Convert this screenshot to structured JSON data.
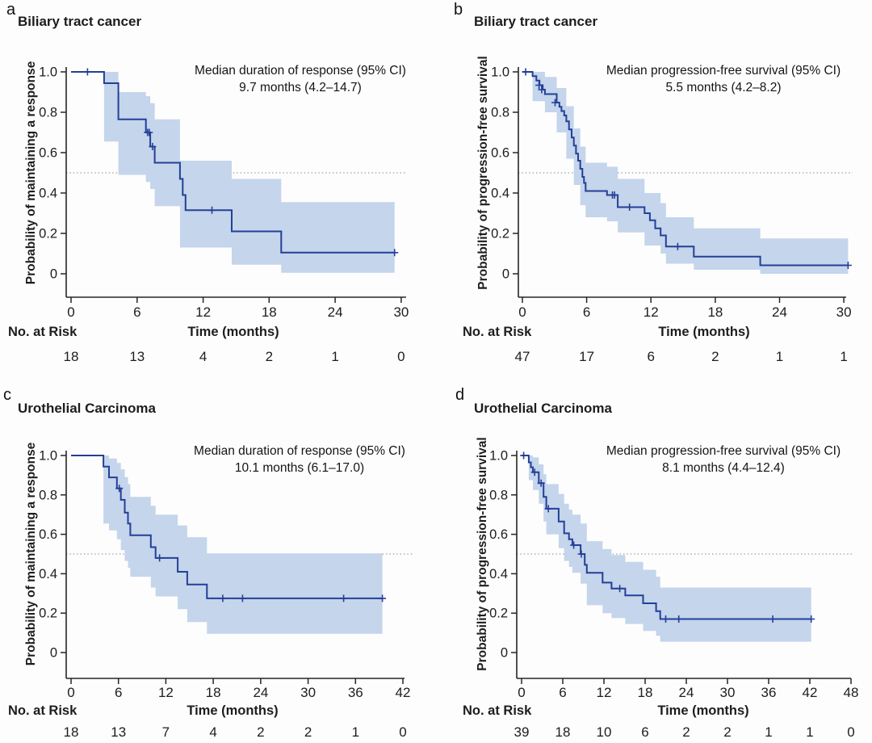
{
  "colors": {
    "curve": "#243f97",
    "ci_band": "#c4d5ec",
    "reference_line": "#9a9a9a",
    "axis": "#262626"
  },
  "chart_data": [
    {
      "id": "a",
      "type": "km_step",
      "panel_label": "a",
      "title": "Biliary tract cancer",
      "y_axis_label": "Probability of maintaining a response",
      "x_axis_label": "Time (months)",
      "risk_label": "No. at Risk",
      "annotation": {
        "line1": "Median duration of response (95% CI)",
        "line2": "9.7 months (4.2–14.7)"
      },
      "x_ticks": [
        0,
        6,
        12,
        18,
        24,
        30
      ],
      "y_tick_values": [
        1.0,
        0.8,
        0.6,
        0.4,
        0.2,
        0
      ],
      "y_tick_labels": [
        "1.0",
        "0.8",
        "0.6",
        "0.4",
        "0.2",
        "0"
      ],
      "y_range": [
        0,
        1
      ],
      "x_max": 30.5,
      "reference_line": 0.5,
      "no_at_risk": [
        18,
        13,
        4,
        2,
        1,
        0
      ],
      "steps": [
        [
          0,
          1.0
        ],
        [
          3.0,
          0.944
        ],
        [
          4.3,
          0.765
        ],
        [
          6.8,
          0.7
        ],
        [
          7.2,
          0.63
        ],
        [
          7.6,
          0.55
        ],
        [
          9.9,
          0.47
        ],
        [
          10.15,
          0.39
        ],
        [
          10.4,
          0.315
        ],
        [
          14.6,
          0.21
        ],
        [
          19.1,
          0.105
        ],
        [
          29.4,
          0.105
        ]
      ],
      "censors": [
        [
          1.5,
          1.0
        ],
        [
          6.95,
          0.7
        ],
        [
          7.1,
          0.7
        ],
        [
          7.4,
          0.63
        ],
        [
          12.8,
          0.315
        ],
        [
          29.4,
          0.105
        ]
      ],
      "ci_segments": [
        [
          3.0,
          4.3,
          0.655,
          1.0
        ],
        [
          4.3,
          6.8,
          0.49,
          0.9
        ],
        [
          6.8,
          7.2,
          0.455,
          0.88
        ],
        [
          7.2,
          7.6,
          0.42,
          0.845
        ],
        [
          7.6,
          9.9,
          0.335,
          0.765
        ],
        [
          9.9,
          14.6,
          0.13,
          0.56
        ],
        [
          14.6,
          19.1,
          0.045,
          0.47
        ],
        [
          19.1,
          29.4,
          0.005,
          0.355
        ]
      ]
    },
    {
      "id": "b",
      "type": "km_step",
      "panel_label": "b",
      "title": "Biliary tract cancer",
      "y_axis_label": "Probability of progression-free survival",
      "x_axis_label": "Time (months)",
      "risk_label": "No. at Risk",
      "annotation": {
        "line1": "Median progression-free survival (95% CI)",
        "line2": "5.5 months (4.2–8.2)"
      },
      "x_ticks": [
        0,
        6,
        12,
        18,
        24,
        30
      ],
      "y_tick_values": [
        1.0,
        0.8,
        0.6,
        0.4,
        0.2,
        0
      ],
      "y_tick_labels": [
        "1.0",
        "0.8",
        "0.6",
        "0.4",
        "0.2",
        "0"
      ],
      "y_range": [
        0,
        1
      ],
      "x_max": 30.5,
      "reference_line": 0.5,
      "no_at_risk": [
        47,
        17,
        6,
        2,
        1,
        1
      ],
      "steps": [
        [
          0,
          1.0
        ],
        [
          0.95,
          0.979
        ],
        [
          1.3,
          0.957
        ],
        [
          1.6,
          0.934
        ],
        [
          1.9,
          0.912
        ],
        [
          2.1,
          0.89
        ],
        [
          3.2,
          0.848
        ],
        [
          3.45,
          0.827
        ],
        [
          3.65,
          0.806
        ],
        [
          3.9,
          0.784
        ],
        [
          4.1,
          0.755
        ],
        [
          4.35,
          0.715
        ],
        [
          4.6,
          0.675
        ],
        [
          4.8,
          0.635
        ],
        [
          5.0,
          0.595
        ],
        [
          5.2,
          0.56
        ],
        [
          5.4,
          0.52
        ],
        [
          5.6,
          0.48
        ],
        [
          5.75,
          0.45
        ],
        [
          5.9,
          0.41
        ],
        [
          7.9,
          0.39
        ],
        [
          8.9,
          0.33
        ],
        [
          11.4,
          0.3
        ],
        [
          11.9,
          0.265
        ],
        [
          12.4,
          0.225
        ],
        [
          12.9,
          0.19
        ],
        [
          13.4,
          0.135
        ],
        [
          16.0,
          0.085
        ],
        [
          22.2,
          0.042
        ],
        [
          30.4,
          0.042
        ]
      ],
      "censors": [
        [
          0.3,
          1.0
        ],
        [
          1.55,
          0.934
        ],
        [
          1.8,
          0.912
        ],
        [
          3.05,
          0.848
        ],
        [
          8.4,
          0.39
        ],
        [
          8.6,
          0.39
        ],
        [
          10.0,
          0.33
        ],
        [
          14.5,
          0.135
        ],
        [
          30.4,
          0.042
        ]
      ],
      "ci_segments": [
        [
          0.95,
          2.1,
          0.855,
          1.0
        ],
        [
          2.1,
          3.2,
          0.8,
          0.975
        ],
        [
          3.2,
          4.1,
          0.7,
          0.92
        ],
        [
          4.1,
          4.8,
          0.57,
          0.83
        ],
        [
          4.8,
          5.4,
          0.44,
          0.72
        ],
        [
          5.4,
          5.9,
          0.34,
          0.63
        ],
        [
          5.9,
          7.9,
          0.28,
          0.55
        ],
        [
          7.9,
          8.9,
          0.26,
          0.53
        ],
        [
          8.9,
          11.4,
          0.205,
          0.47
        ],
        [
          11.4,
          12.9,
          0.14,
          0.4
        ],
        [
          12.9,
          13.4,
          0.1,
          0.35
        ],
        [
          13.4,
          16.0,
          0.05,
          0.28
        ],
        [
          16.0,
          22.2,
          0.02,
          0.225
        ],
        [
          22.2,
          30.4,
          0.0,
          0.175
        ]
      ]
    },
    {
      "id": "c",
      "type": "km_step",
      "panel_label": "c",
      "title": "Urothelial Carcinoma",
      "y_axis_label": "Probability of maintaining a response",
      "x_axis_label": "Time (months)",
      "risk_label": "No. at Risk",
      "annotation": {
        "line1": "Median duration of response (95% CI)",
        "line2": "10.1 months (6.1–17.0)"
      },
      "x_ticks": [
        0,
        6,
        12,
        18,
        24,
        30,
        36,
        42
      ],
      "y_tick_values": [
        1.0,
        0.8,
        0.6,
        0.4,
        0.2,
        0
      ],
      "y_tick_labels": [
        "1.0",
        "0.8",
        "0.6",
        "0.4",
        "0.2",
        "0"
      ],
      "y_range": [
        0,
        1
      ],
      "x_max": 42.5,
      "reference_line": 0.5,
      "no_at_risk": [
        18,
        13,
        7,
        4,
        2,
        2,
        1,
        0
      ],
      "steps": [
        [
          0,
          1.0
        ],
        [
          4.1,
          0.944
        ],
        [
          4.8,
          0.889
        ],
        [
          5.8,
          0.833
        ],
        [
          6.3,
          0.775
        ],
        [
          6.8,
          0.71
        ],
        [
          7.2,
          0.655
        ],
        [
          7.5,
          0.595
        ],
        [
          10.1,
          0.535
        ],
        [
          10.7,
          0.48
        ],
        [
          13.5,
          0.41
        ],
        [
          14.7,
          0.345
        ],
        [
          17.2,
          0.275
        ],
        [
          39.4,
          0.275
        ]
      ],
      "censors": [
        [
          6.1,
          0.833
        ],
        [
          11.2,
          0.48
        ],
        [
          19.2,
          0.275
        ],
        [
          21.7,
          0.275
        ],
        [
          34.5,
          0.275
        ],
        [
          39.4,
          0.275
        ]
      ],
      "ci_segments": [
        [
          4.1,
          4.8,
          0.655,
          1.0
        ],
        [
          4.8,
          5.8,
          0.62,
          0.985
        ],
        [
          5.8,
          6.3,
          0.575,
          0.962
        ],
        [
          6.3,
          6.8,
          0.52,
          0.93
        ],
        [
          6.8,
          7.2,
          0.465,
          0.89
        ],
        [
          7.2,
          7.5,
          0.43,
          0.855
        ],
        [
          7.5,
          10.1,
          0.385,
          0.79
        ],
        [
          10.1,
          10.7,
          0.33,
          0.745
        ],
        [
          10.7,
          13.5,
          0.285,
          0.7
        ],
        [
          13.5,
          14.7,
          0.22,
          0.645
        ],
        [
          14.7,
          17.2,
          0.155,
          0.585
        ],
        [
          17.2,
          39.4,
          0.095,
          0.503
        ]
      ]
    },
    {
      "id": "d",
      "type": "km_step",
      "panel_label": "d",
      "title": "Urothelial Carcinoma",
      "y_axis_label": "Probability of progression-free survival",
      "x_axis_label": "Time (months)",
      "risk_label": "No. at Risk",
      "annotation": {
        "line1": "Median progression-free survival (95% CI)",
        "line2": "8.1 months (4.4–12.4)"
      },
      "x_ticks": [
        0,
        6,
        12,
        18,
        24,
        30,
        36,
        42,
        48
      ],
      "y_tick_values": [
        1.0,
        0.8,
        0.6,
        0.4,
        0.2,
        0
      ],
      "y_tick_labels": [
        "1.0",
        "0.8",
        "0.6",
        "0.4",
        "0.2",
        "0"
      ],
      "y_range": [
        0,
        1
      ],
      "x_max": 48.5,
      "reference_line": 0.5,
      "no_at_risk": [
        39,
        18,
        10,
        6,
        2,
        2,
        1,
        1,
        0
      ],
      "steps": [
        [
          0,
          1.0
        ],
        [
          1.05,
          0.965
        ],
        [
          1.35,
          0.94
        ],
        [
          1.65,
          0.915
        ],
        [
          2.5,
          0.86
        ],
        [
          3.2,
          0.79
        ],
        [
          3.6,
          0.73
        ],
        [
          5.4,
          0.665
        ],
        [
          6.2,
          0.605
        ],
        [
          6.9,
          0.575
        ],
        [
          7.4,
          0.545
        ],
        [
          8.6,
          0.5
        ],
        [
          9.2,
          0.445
        ],
        [
          9.5,
          0.405
        ],
        [
          11.8,
          0.355
        ],
        [
          13.1,
          0.325
        ],
        [
          15.1,
          0.29
        ],
        [
          17.7,
          0.25
        ],
        [
          19.6,
          0.21
        ],
        [
          20.2,
          0.17
        ],
        [
          42.2,
          0.17
        ]
      ],
      "censors": [
        [
          0.3,
          1.0
        ],
        [
          1.9,
          0.915
        ],
        [
          2.85,
          0.86
        ],
        [
          3.9,
          0.73
        ],
        [
          7.6,
          0.545
        ],
        [
          8.7,
          0.5
        ],
        [
          14.3,
          0.325
        ],
        [
          21.0,
          0.17
        ],
        [
          22.9,
          0.17
        ],
        [
          36.6,
          0.17
        ],
        [
          42.2,
          0.17
        ]
      ],
      "ci_segments": [
        [
          1.05,
          1.65,
          0.875,
          1.0
        ],
        [
          1.65,
          2.5,
          0.825,
          0.99
        ],
        [
          2.5,
          3.2,
          0.755,
          0.955
        ],
        [
          3.2,
          3.6,
          0.665,
          0.905
        ],
        [
          3.6,
          5.4,
          0.6,
          0.855
        ],
        [
          5.4,
          6.2,
          0.53,
          0.805
        ],
        [
          6.2,
          6.9,
          0.465,
          0.755
        ],
        [
          6.9,
          7.4,
          0.435,
          0.725
        ],
        [
          7.4,
          8.6,
          0.405,
          0.7
        ],
        [
          8.6,
          9.5,
          0.35,
          0.655
        ],
        [
          9.5,
          11.8,
          0.24,
          0.565
        ],
        [
          11.8,
          13.1,
          0.2,
          0.525
        ],
        [
          13.1,
          15.1,
          0.175,
          0.495
        ],
        [
          15.1,
          17.7,
          0.145,
          0.46
        ],
        [
          17.7,
          19.6,
          0.11,
          0.42
        ],
        [
          19.6,
          20.2,
          0.085,
          0.385
        ],
        [
          20.2,
          42.2,
          0.055,
          0.33
        ]
      ]
    }
  ]
}
